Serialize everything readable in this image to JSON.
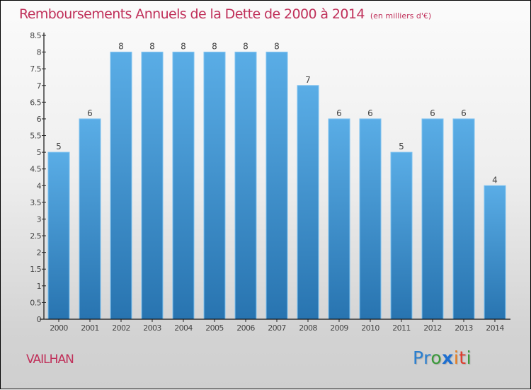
{
  "header": {
    "title": "Remboursements Annuels de la Dette de 2000 à 2014",
    "unit": "(en milliers d'€)"
  },
  "footer": {
    "city": "VAILHAN",
    "logo": {
      "letters": [
        {
          "ch": "P",
          "color": "#2a7fd0"
        },
        {
          "ch": "r",
          "color": "#2a7fd0"
        },
        {
          "ch": "o",
          "color": "#3a9a3a"
        },
        {
          "ch": "x",
          "color": "#1e6fd0"
        },
        {
          "ch": "i",
          "color": "#e87a1a"
        },
        {
          "ch": "t",
          "color": "#e03a2a"
        },
        {
          "ch": "i",
          "color": "#3a9a3a"
        }
      ]
    }
  },
  "colors": {
    "title": "#c0305a",
    "bar_top": "#5aade6",
    "bar_bottom": "#2874b0",
    "bar_edge": "#7ec2f0"
  },
  "chart_data": {
    "type": "bar",
    "title": "Remboursements Annuels de la Dette de 2000 à 2014",
    "subtitle": "(en milliers d'€)",
    "xlabel": "",
    "ylabel": "",
    "categories": [
      "2000",
      "2001",
      "2002",
      "2003",
      "2004",
      "2005",
      "2006",
      "2007",
      "2008",
      "2009",
      "2010",
      "2011",
      "2012",
      "2013",
      "2014"
    ],
    "values": [
      5,
      6,
      8,
      8,
      8,
      8,
      8,
      8,
      7,
      6,
      6,
      5,
      6,
      6,
      4
    ],
    "data_labels": [
      "5",
      "6",
      "8",
      "8",
      "8",
      "8",
      "8",
      "8",
      "7",
      "6",
      "6",
      "5",
      "6",
      "6",
      "4"
    ],
    "ylim": [
      0,
      8.5
    ],
    "yticks": [
      "0",
      "0.5",
      "1",
      "1.5",
      "2",
      "2.5",
      "3",
      "3.5",
      "4",
      "4.5",
      "5",
      "5.5",
      "6",
      "6.5",
      "7",
      "7.5",
      "8",
      "8.5"
    ],
    "grid": false,
    "legend": "none"
  }
}
